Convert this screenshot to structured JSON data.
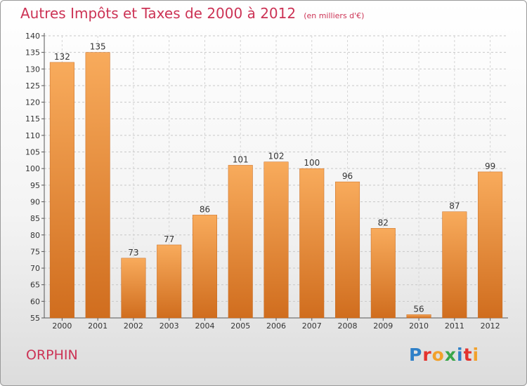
{
  "header": {
    "title": "Autres Impôts et Taxes de 2000 à 2012",
    "unit": "(en milliers d'€)"
  },
  "footer": {
    "commune": "ORPHIN",
    "logo": "Proxiti"
  },
  "colors": {
    "title": "#cc3355",
    "bar_light": "#f8ab5c",
    "bar_dark": "#d06d1e",
    "logo_letters": [
      "#2f80c8",
      "#e4332e",
      "#f2a12b",
      "#3aa64a",
      "#2f80c8",
      "#e4332e",
      "#f2a12b"
    ]
  },
  "chart_data": {
    "type": "bar",
    "title": "Autres Impôts et Taxes de 2000 à 2012",
    "subtitle": "(en milliers d'€)",
    "categories": [
      "2000",
      "2001",
      "2002",
      "2003",
      "2004",
      "2005",
      "2006",
      "2007",
      "2008",
      "2009",
      "2010",
      "2011",
      "2012"
    ],
    "values": [
      132,
      135,
      73,
      77,
      86,
      101,
      102,
      100,
      96,
      82,
      56,
      87,
      99
    ],
    "ylim": [
      55,
      140
    ],
    "yticks": [
      55,
      60,
      65,
      70,
      75,
      80,
      85,
      90,
      95,
      100,
      105,
      110,
      115,
      120,
      125,
      130,
      135,
      140
    ],
    "grid": true,
    "data_labels": true
  }
}
